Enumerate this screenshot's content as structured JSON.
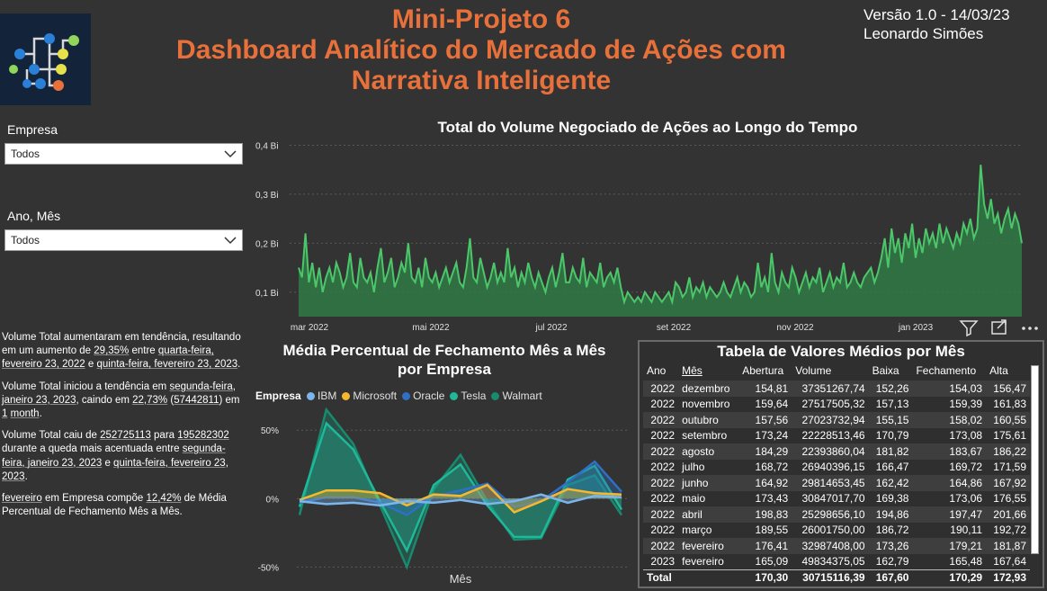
{
  "header": {
    "title_line1": "Mini-Projeto 6",
    "title_line2": "Dashboard Analítico do Mercado de Ações com",
    "title_line3": "Narrativa Inteligente",
    "version": "Versão 1.0 - 14/03/23",
    "author": "Leonardo Simões"
  },
  "slicers": {
    "empresa_label": "Empresa",
    "empresa_value": "Todos",
    "anomes_label": "Ano, Mês",
    "anomes_value": "Todos"
  },
  "narrative": {
    "p1": [
      "Volume Total aumentaram em tendência, resultando em um aumento de ",
      "29,35%",
      " entre ",
      "quarta-feira, fevereiro 23, 2022",
      " e ",
      "quinta-feira, fevereiro 23, 2023",
      "."
    ],
    "p2": [
      "Volume Total iniciou a tendência em ",
      "segunda-feira, janeiro 23, 2023",
      ", caindo em ",
      "22,73%",
      " (",
      "57442811",
      ") em ",
      "1",
      " ",
      "month",
      "."
    ],
    "p3": [
      "Volume Total caiu de ",
      "252725113",
      " para ",
      "195282302",
      " durante a queda mais acentuada entre ",
      "segunda-feira, janeiro 23, 2023",
      " e ",
      "quinta-feira, fevereiro 23, 2023",
      "."
    ],
    "p4": [
      "fevereiro",
      " em Empresa  compõe ",
      "12,42%",
      " de Média Percentual de Fechamento Mês a Mês."
    ]
  },
  "chart_data": [
    {
      "type": "area",
      "title": "Total do Volume Negociado de Ações ao Longo do Tempo",
      "y_ticks": [
        "0,1 Bi",
        "0,2 Bi",
        "0,3 Bi",
        "0,4 Bi"
      ],
      "x_ticks": [
        "mar 2022",
        "mai 2022",
        "jul 2022",
        "set 2022",
        "nov 2022",
        "jan 2023"
      ],
      "ylim": [
        0.05,
        0.41
      ],
      "grid": true,
      "color": "#4bc76a",
      "values": [
        0.15,
        0.13,
        0.22,
        0.12,
        0.16,
        0.11,
        0.15,
        0.1,
        0.13,
        0.15,
        0.12,
        0.16,
        0.14,
        0.11,
        0.13,
        0.18,
        0.12,
        0.11,
        0.17,
        0.13,
        0.12,
        0.14,
        0.1,
        0.15,
        0.19,
        0.12,
        0.14,
        0.17,
        0.11,
        0.13,
        0.16,
        0.14,
        0.2,
        0.13,
        0.12,
        0.15,
        0.11,
        0.17,
        0.13,
        0.12,
        0.14,
        0.11,
        0.13,
        0.15,
        0.12,
        0.14,
        0.16,
        0.12,
        0.11,
        0.15,
        0.21,
        0.13,
        0.12,
        0.17,
        0.14,
        0.11,
        0.13,
        0.16,
        0.12,
        0.14,
        0.12,
        0.19,
        0.13,
        0.15,
        0.11,
        0.14,
        0.12,
        0.16,
        0.13,
        0.11,
        0.14,
        0.12,
        0.1,
        0.13,
        0.15,
        0.11,
        0.14,
        0.18,
        0.12,
        0.12,
        0.15,
        0.13,
        0.12,
        0.17,
        0.11,
        0.14,
        0.13,
        0.12,
        0.16,
        0.11,
        0.13,
        0.14,
        0.12,
        0.15,
        0.11,
        0.08,
        0.1,
        0.09,
        0.08,
        0.09,
        0.08,
        0.1,
        0.09,
        0.08,
        0.1,
        0.09,
        0.08,
        0.09,
        0.1,
        0.08,
        0.12,
        0.11,
        0.09,
        0.1,
        0.13,
        0.09,
        0.11,
        0.1,
        0.12,
        0.09,
        0.11,
        0.1,
        0.09,
        0.1,
        0.12,
        0.1,
        0.09,
        0.11,
        0.13,
        0.1,
        0.12,
        0.11,
        0.09,
        0.1,
        0.16,
        0.11,
        0.13,
        0.1,
        0.18,
        0.12,
        0.1,
        0.14,
        0.12,
        0.11,
        0.15,
        0.13,
        0.1,
        0.12,
        0.14,
        0.11,
        0.13,
        0.12,
        0.15,
        0.1,
        0.12,
        0.14,
        0.11,
        0.13,
        0.12,
        0.16,
        0.11,
        0.12,
        0.14,
        0.12,
        0.11,
        0.13,
        0.14,
        0.15,
        0.12,
        0.14,
        0.17,
        0.21,
        0.15,
        0.23,
        0.18,
        0.21,
        0.16,
        0.22,
        0.19,
        0.24,
        0.17,
        0.21,
        0.18,
        0.23,
        0.2,
        0.22,
        0.19,
        0.24,
        0.2,
        0.23,
        0.21,
        0.19,
        0.22,
        0.2,
        0.24,
        0.22,
        0.25,
        0.21,
        0.23,
        0.36,
        0.28,
        0.25,
        0.29,
        0.24,
        0.26,
        0.22,
        0.25,
        0.27,
        0.23,
        0.26,
        0.24,
        0.2
      ]
    },
    {
      "type": "area",
      "title_line1": "Média Percentual de Fechamento Mês a Mês",
      "title_line2": "por Empresa",
      "legend_title": "Empresa",
      "xlabel": "Mês",
      "y_ticks": [
        "50%",
        "0%",
        "-50%"
      ],
      "ylim": [
        -55,
        60
      ],
      "series": [
        {
          "name": "IBM",
          "color": "#7cb5ec",
          "values": [
            -2,
            -4,
            -3,
            -5,
            -2,
            -3,
            -1,
            -4,
            -2,
            3,
            -3,
            2,
            1
          ]
        },
        {
          "name": "Microsoft",
          "color": "#f5b82e",
          "values": [
            -1,
            6,
            6,
            4,
            -5,
            3,
            2,
            10,
            -10,
            -2,
            7,
            4,
            3
          ]
        },
        {
          "name": "Oracle",
          "color": "#2f6fc4",
          "values": [
            -3,
            1,
            1,
            -3,
            -12,
            2,
            6,
            11,
            -6,
            -2,
            12,
            27,
            5
          ]
        },
        {
          "name": "Tesla",
          "color": "#1fb89a",
          "values": [
            -6,
            55,
            36,
            -2,
            -38,
            10,
            25,
            -5,
            -28,
            -28,
            14,
            24,
            -8
          ]
        },
        {
          "name": "Walmart",
          "color": "#188a6e",
          "values": [
            -12,
            65,
            40,
            -5,
            -50,
            7,
            32,
            -2,
            -30,
            -29,
            10,
            17,
            -12
          ]
        }
      ]
    }
  ],
  "table": {
    "title": "Tabela de Valores Médios por Mês",
    "headers": [
      "Ano",
      "Mês",
      "Abertura",
      "Volume",
      "Baixa",
      "Fechamento",
      "Alta"
    ],
    "rows": [
      [
        "2022",
        "dezembro",
        "154,81",
        "37351267,74",
        "152,26",
        "154,03",
        "156,47"
      ],
      [
        "2022",
        "novembro",
        "159,64",
        "27517505,32",
        "157,13",
        "159,39",
        "161,83"
      ],
      [
        "2022",
        "outubro",
        "157,56",
        "27023732,94",
        "155,15",
        "158,02",
        "160,55"
      ],
      [
        "2022",
        "setembro",
        "173,24",
        "22228513,46",
        "170,79",
        "173,08",
        "175,61"
      ],
      [
        "2022",
        "agosto",
        "184,29",
        "22393860,04",
        "181,82",
        "183,67",
        "186,22"
      ],
      [
        "2022",
        "julho",
        "168,72",
        "26940396,15",
        "166,47",
        "169,72",
        "171,59"
      ],
      [
        "2022",
        "junho",
        "164,92",
        "29814653,45",
        "162,42",
        "164,86",
        "167,92"
      ],
      [
        "2022",
        "maio",
        "173,43",
        "30847017,70",
        "169,38",
        "173,06",
        "176,55"
      ],
      [
        "2022",
        "abril",
        "198,83",
        "25298656,10",
        "194,86",
        "197,47",
        "201,66"
      ],
      [
        "2022",
        "março",
        "189,55",
        "26001750,00",
        "186,72",
        "190,11",
        "192,72"
      ],
      [
        "2022",
        "fevereiro",
        "176,41",
        "32987408,00",
        "173,26",
        "179,21",
        "181,87"
      ],
      [
        "2023",
        "fevereiro",
        "165,09",
        "49834375,05",
        "162,79",
        "165,48",
        "167,64"
      ]
    ],
    "total": [
      "Total",
      "",
      "170,30",
      "30715116,39",
      "167,60",
      "170,29",
      "172,93"
    ]
  }
}
